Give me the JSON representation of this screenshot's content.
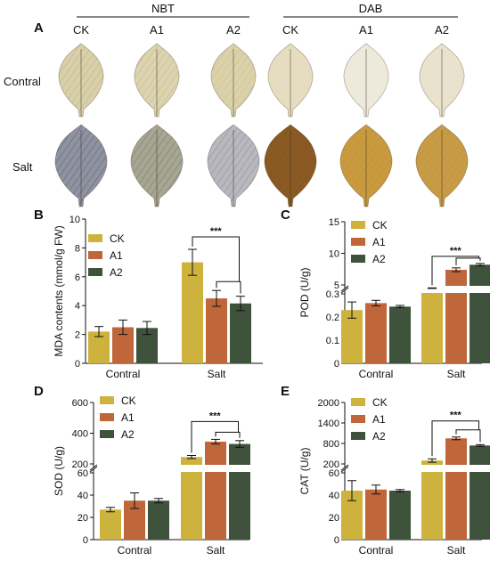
{
  "figure": {
    "panel_letters": [
      "A",
      "B",
      "C",
      "D",
      "E"
    ],
    "nbt_header": "NBT",
    "dab_header": "DAB",
    "leaf_columns": [
      "CK",
      "A1",
      "A2",
      "CK",
      "A1",
      "A2"
    ],
    "leaf_rows": [
      "Contral",
      "Salt"
    ]
  },
  "colors": {
    "CK": "#cdb33d",
    "A1": "#c0663b",
    "A2": "#3f523b"
  },
  "chart_data": [
    {
      "panel": "B",
      "type": "bar",
      "ylabel": "MDA contents (mmol/g FW)",
      "categories": [
        "Contral",
        "Salt"
      ],
      "ylim": [
        0,
        10
      ],
      "yticks": [
        0,
        2,
        4,
        6,
        8,
        10
      ],
      "ytick_labels": [
        "0",
        "2",
        "4",
        "6",
        "8",
        "10"
      ],
      "series": [
        {
          "name": "CK",
          "values": [
            2.2,
            7.0
          ],
          "errors": [
            0.35,
            0.9
          ]
        },
        {
          "name": "A1",
          "values": [
            2.5,
            4.5
          ],
          "errors": [
            0.5,
            0.55
          ]
        },
        {
          "name": "A2",
          "values": [
            2.45,
            4.15
          ],
          "errors": [
            0.45,
            0.5
          ]
        }
      ],
      "annotation": "***"
    },
    {
      "panel": "C",
      "type": "bar",
      "ylabel": "POD (U/g)",
      "categories": [
        "Contral",
        "Salt"
      ],
      "broken_axis": {
        "lower": [
          0,
          0.3
        ],
        "upper": [
          5,
          15
        ]
      },
      "yticks": [
        0,
        0.1,
        0.2,
        0.3,
        5,
        10,
        15
      ],
      "ytick_labels": [
        "0",
        "0.1",
        "0.2",
        "0.3",
        "5",
        "10",
        "15"
      ],
      "series": [
        {
          "name": "CK",
          "values": [
            0.23,
            3.3
          ],
          "errors": [
            0.035,
            0.15
          ]
        },
        {
          "name": "A1",
          "values": [
            0.26,
            7.4
          ],
          "errors": [
            0.012,
            0.3
          ]
        },
        {
          "name": "A2",
          "values": [
            0.245,
            8.2
          ],
          "errors": [
            0.005,
            0.2
          ]
        }
      ],
      "annotation": "***"
    },
    {
      "panel": "D",
      "type": "bar",
      "ylabel": "SOD (U/g)",
      "categories": [
        "Contral",
        "Salt"
      ],
      "broken_axis": {
        "lower": [
          0,
          60
        ],
        "upper": [
          200,
          600
        ]
      },
      "yticks": [
        0,
        20,
        40,
        60,
        200,
        400,
        600
      ],
      "ytick_labels": [
        "0",
        "20",
        "40",
        "60",
        "200",
        "400",
        "600"
      ],
      "series": [
        {
          "name": "CK",
          "values": [
            27,
            245
          ],
          "errors": [
            2,
            10
          ]
        },
        {
          "name": "A1",
          "values": [
            35,
            345
          ],
          "errors": [
            7,
            15
          ]
        },
        {
          "name": "A2",
          "values": [
            35,
            330
          ],
          "errors": [
            2,
            22
          ]
        }
      ],
      "annotation": "***"
    },
    {
      "panel": "E",
      "type": "bar",
      "ylabel": "CAT (U/g)",
      "categories": [
        "Contral",
        "Salt"
      ],
      "broken_axis": {
        "lower": [
          0,
          60
        ],
        "upper": [
          200,
          2000
        ]
      },
      "yticks": [
        0,
        20,
        40,
        60,
        200,
        800,
        1400,
        2000
      ],
      "ytick_labels": [
        "0",
        "20",
        "40",
        "60",
        "200",
        "800",
        "1400",
        "2000"
      ],
      "series": [
        {
          "name": "CK",
          "values": [
            44,
            300
          ],
          "errors": [
            9,
            50
          ]
        },
        {
          "name": "A1",
          "values": [
            45,
            950
          ],
          "errors": [
            4,
            40
          ]
        },
        {
          "name": "A2",
          "values": [
            44,
            740
          ],
          "errors": [
            1,
            25
          ]
        }
      ],
      "annotation": "***"
    }
  ]
}
